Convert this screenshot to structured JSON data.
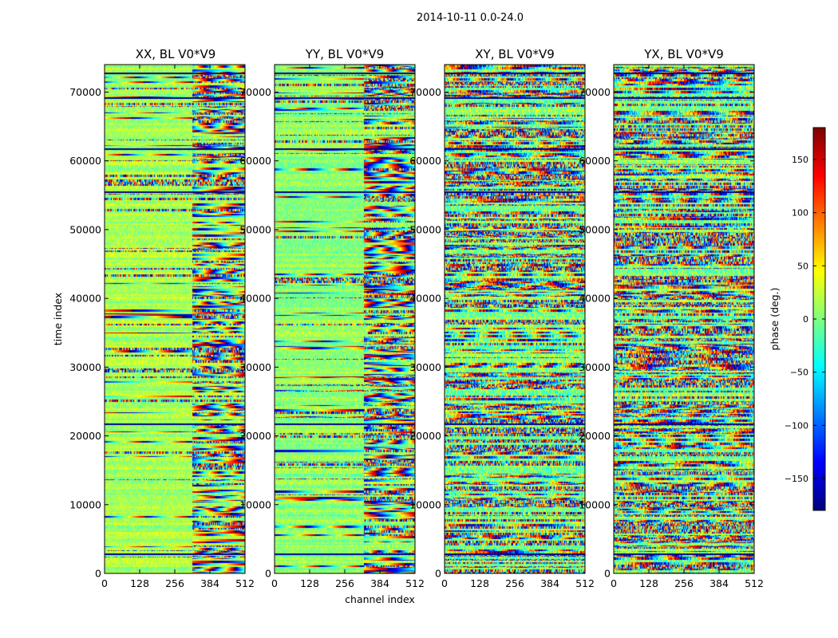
{
  "figure_title": "2014-10-11 0.0-24.0",
  "chart_data": {
    "type": "heatmap",
    "suptitle": "2014-10-11 0.0-24.0",
    "xlabel": "channel index",
    "ylabel": "time index",
    "xlim": [
      0,
      512
    ],
    "ylim": [
      0,
      74000
    ],
    "xticks": [
      0,
      128,
      256,
      384,
      512
    ],
    "yticks": [
      0,
      10000,
      20000,
      30000,
      40000,
      50000,
      60000,
      70000
    ],
    "panels": [
      {
        "title": "XX, BL V0*V9",
        "polarization": "XX",
        "baseline": "V0*V9",
        "dominant_phase_deg": 15,
        "noisy_from_channel": 320
      },
      {
        "title": "YY, BL V0*V9",
        "polarization": "YY",
        "baseline": "V0*V9",
        "dominant_phase_deg": 5,
        "noisy_from_channel": 325
      },
      {
        "title": "XY, BL V0*V9",
        "polarization": "XY",
        "baseline": "V0*V9",
        "dominant_phase_deg": 0,
        "noisy_from_channel": 0
      },
      {
        "title": "YX, BL V0*V9",
        "polarization": "YX",
        "baseline": "V0*V9",
        "dominant_phase_deg": 0,
        "noisy_from_channel": 0
      }
    ],
    "colorbar": {
      "label": "phase (deg.)",
      "colormap": "jet",
      "range": [
        -180,
        180
      ],
      "ticks": [
        150,
        100,
        50,
        0,
        -50,
        -100,
        -150
      ],
      "tick_labels": [
        "150",
        "100",
        "50",
        "0",
        "−50",
        "−100",
        "−150"
      ]
    },
    "notable_rows_time_index": [
      2900,
      21800,
      55600,
      61800,
      69200,
      72800
    ]
  }
}
